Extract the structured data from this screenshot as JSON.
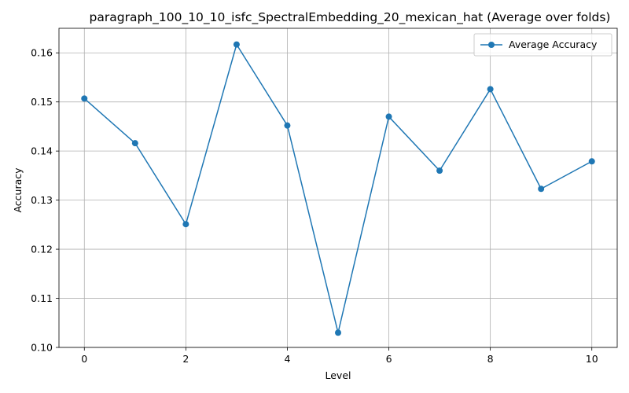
{
  "chart_data": {
    "type": "line",
    "title": "paragraph_100_10_10_isfc_SpectralEmbedding_20_mexican_hat (Average over folds)",
    "xlabel": "Level",
    "ylabel": "Accuracy",
    "x": [
      0,
      1,
      2,
      3,
      4,
      5,
      6,
      7,
      8,
      9,
      10
    ],
    "series": [
      {
        "name": "Average Accuracy",
        "values": [
          0.1507,
          0.1416,
          0.1251,
          0.1617,
          0.1452,
          0.103,
          0.147,
          0.136,
          0.1526,
          0.1323,
          0.1379
        ],
        "color": "#1f77b4",
        "marker": "circle"
      }
    ],
    "xlim": [
      -0.5,
      10.5
    ],
    "ylim": [
      0.1,
      0.165
    ],
    "xticks": [
      0,
      2,
      4,
      6,
      8,
      10
    ],
    "xtick_labels": [
      "0",
      "2",
      "4",
      "6",
      "8",
      "10"
    ],
    "yticks": [
      0.1,
      0.11,
      0.12,
      0.13,
      0.14,
      0.15,
      0.16
    ],
    "ytick_labels": [
      "0.10",
      "0.11",
      "0.12",
      "0.13",
      "0.14",
      "0.15",
      "0.16"
    ],
    "grid": true,
    "legend_position": "top-right"
  }
}
